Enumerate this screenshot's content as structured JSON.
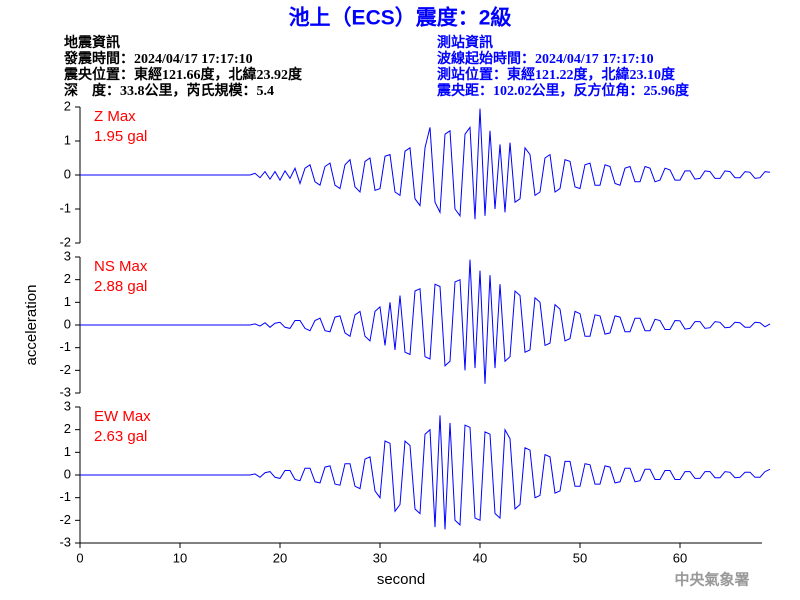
{
  "header": {
    "title": "池上（ECS）震度：2級",
    "left_lines": [
      "地震資訊",
      "發震時間：2024/04/17 17:17:10",
      "震央位置：東經121.66度，北緯23.92度",
      "深　度：33.8公里，芮氏規模：5.4"
    ],
    "right_lines": [
      "測站資訊",
      "波線起始時間：2024/04/17 17:17:10",
      "測站位置：東經121.22度，北緯23.10度",
      "震央距：102.02公里，反方位角：25.96度"
    ],
    "footer": "中央氣象署"
  },
  "chart_data": [
    {
      "type": "line",
      "annotation": "Z Max",
      "annotation_value": "1.95 gal",
      "color": "#0000ff",
      "annotation_color": "#ff0000",
      "xlim": [
        0,
        68.2
      ],
      "ylim": [
        -2,
        2
      ],
      "yticks": [
        -2,
        -1,
        0,
        1,
        2
      ],
      "x": [
        0,
        17,
        17.5,
        18,
        18.5,
        19,
        19.5,
        20,
        20.5,
        21,
        21.5,
        22,
        22.5,
        23,
        23.5,
        24,
        24.5,
        25,
        25.5,
        26,
        26.5,
        27,
        27.5,
        28,
        28.5,
        29,
        29.5,
        30,
        30.5,
        31,
        31.5,
        32,
        32.5,
        33,
        33.5,
        34,
        34.5,
        35,
        35.5,
        36,
        36.5,
        37,
        37.5,
        38,
        38.5,
        39,
        39.5,
        40,
        40.5,
        41,
        41.5,
        42,
        42.5,
        43,
        43.5,
        44,
        44.5,
        45,
        45.5,
        46,
        46.5,
        47,
        47.5,
        48,
        48.5,
        49,
        49.5,
        50,
        50.5,
        51,
        51.5,
        52,
        52.5,
        53,
        53.5,
        54,
        54.5,
        55,
        55.5,
        56,
        56.5,
        57,
        57.5,
        58,
        58.5,
        59,
        59.5,
        60,
        60.5,
        61,
        61.5,
        62,
        62.5,
        63,
        63.5,
        64,
        64.5,
        65,
        65.5,
        66,
        66.5,
        67,
        67.5,
        68,
        68.5,
        69
      ],
      "values": [
        0,
        0,
        0.05,
        -0.08,
        0.1,
        -0.12,
        0.1,
        -0.15,
        0.12,
        -0.1,
        0.2,
        -0.25,
        0.2,
        0.3,
        -0.2,
        -0.3,
        0.25,
        0.35,
        -0.3,
        -0.4,
        0.3,
        0.45,
        -0.35,
        -0.5,
        0.4,
        0.5,
        -0.45,
        -0.4,
        0.55,
        0.6,
        -0.5,
        -0.6,
        0.7,
        0.8,
        -0.7,
        -0.9,
        0.8,
        1.4,
        -0.8,
        -1.1,
        1.2,
        1.3,
        -1.0,
        -1.2,
        1.2,
        1.4,
        -1.3,
        1.95,
        -1.2,
        1.3,
        -1.0,
        0.9,
        -1.1,
        0.95,
        -0.8,
        -0.7,
        0.8,
        0.6,
        -0.6,
        -0.5,
        0.5,
        0.6,
        -0.5,
        -0.4,
        0.45,
        0.4,
        -0.35,
        -0.4,
        0.3,
        0.35,
        -0.3,
        -0.3,
        0.3,
        0.25,
        -0.25,
        -0.3,
        0.2,
        0.25,
        -0.2,
        -0.2,
        0.25,
        0.2,
        -0.2,
        -0.15,
        0.2,
        0.15,
        -0.15,
        -0.15,
        0.12,
        0.12,
        -0.12,
        -0.1,
        0.12,
        0.1,
        -0.1,
        -0.1,
        0.12,
        0.1,
        -0.08,
        -0.08,
        0.1,
        0.08,
        -0.1,
        -0.08,
        0.1,
        0.08
      ]
    },
    {
      "type": "line",
      "annotation": "NS Max",
      "annotation_value": "2.88 gal",
      "color": "#0000ff",
      "annotation_color": "#ff0000",
      "ylabel": "acceleration",
      "xlim": [
        0,
        68.2
      ],
      "ylim": [
        -3,
        3
      ],
      "yticks": [
        -3,
        -2,
        -1,
        0,
        1,
        2,
        3
      ],
      "x": [
        0,
        17,
        17.5,
        18,
        18.5,
        19,
        19.5,
        20,
        20.5,
        21,
        21.5,
        22,
        22.5,
        23,
        23.5,
        24,
        24.5,
        25,
        25.5,
        26,
        26.5,
        27,
        27.5,
        28,
        28.5,
        29,
        29.5,
        30,
        30.5,
        31,
        31.5,
        32,
        32.5,
        33,
        33.5,
        34,
        34.5,
        35,
        35.5,
        36,
        36.5,
        37,
        37.5,
        38,
        38.5,
        39,
        39.5,
        40,
        40.5,
        41,
        41.5,
        42,
        42.5,
        43,
        43.5,
        44,
        44.5,
        45,
        45.5,
        46,
        46.5,
        47,
        47.5,
        48,
        48.5,
        49,
        49.5,
        50,
        50.5,
        51,
        51.5,
        52,
        52.5,
        53,
        53.5,
        54,
        54.5,
        55,
        55.5,
        56,
        56.5,
        57,
        57.5,
        58,
        58.5,
        59,
        59.5,
        60,
        60.5,
        61,
        61.5,
        62,
        62.5,
        63,
        63.5,
        64,
        64.5,
        65,
        65.5,
        66,
        66.5,
        67,
        67.5,
        68,
        68.5,
        69
      ],
      "values": [
        0,
        0,
        0.05,
        -0.05,
        0.1,
        -0.1,
        0.08,
        0.12,
        -0.1,
        -0.15,
        0.2,
        0.2,
        -0.15,
        -0.25,
        0.2,
        0.3,
        -0.25,
        -0.3,
        0.35,
        0.4,
        -0.35,
        -0.5,
        0.45,
        0.6,
        -0.5,
        -0.7,
        0.6,
        0.8,
        -0.9,
        1.0,
        -1.1,
        1.3,
        -1.2,
        -1.3,
        1.5,
        1.6,
        -1.4,
        -1.5,
        1.8,
        1.7,
        -1.8,
        -1.6,
        1.9,
        2.0,
        -2.0,
        2.88,
        -1.9,
        2.4,
        -2.6,
        2.2,
        -1.9,
        1.8,
        -1.6,
        -1.4,
        1.5,
        1.3,
        -1.2,
        -1.1,
        1.2,
        1.0,
        -0.9,
        -0.8,
        0.9,
        0.7,
        -0.7,
        -0.6,
        0.6,
        0.5,
        -0.5,
        -0.5,
        0.45,
        0.4,
        -0.4,
        -0.35,
        0.4,
        0.35,
        -0.3,
        -0.3,
        0.3,
        0.3,
        -0.25,
        -0.25,
        0.25,
        0.2,
        -0.2,
        -0.2,
        0.2,
        0.18,
        -0.18,
        -0.15,
        0.15,
        0.15,
        -0.15,
        -0.12,
        0.15,
        0.12,
        -0.12,
        -0.1,
        0.12,
        0.1,
        -0.1,
        -0.1,
        0.12,
        0.1,
        -0.08,
        0.05
      ]
    },
    {
      "type": "line",
      "annotation": "EW Max",
      "annotation_value": "2.63 gal",
      "color": "#0000ff",
      "annotation_color": "#ff0000",
      "xlabel": "second",
      "xlim": [
        0,
        68.2
      ],
      "xticks": [
        0,
        10,
        20,
        30,
        40,
        50,
        60
      ],
      "ylim": [
        -3,
        3
      ],
      "yticks": [
        -3,
        -2,
        -1,
        0,
        1,
        2,
        3
      ],
      "x": [
        0,
        17,
        17.5,
        18,
        18.5,
        19,
        19.5,
        20,
        20.5,
        21,
        21.5,
        22,
        22.5,
        23,
        23.5,
        24,
        24.5,
        25,
        25.5,
        26,
        26.5,
        27,
        27.5,
        28,
        28.5,
        29,
        29.5,
        30,
        30.5,
        31,
        31.5,
        32,
        32.5,
        33,
        33.5,
        34,
        34.5,
        35,
        35.5,
        36,
        36.5,
        37,
        37.5,
        38,
        38.5,
        39,
        39.5,
        40,
        40.5,
        41,
        41.5,
        42,
        42.5,
        43,
        43.5,
        44,
        44.5,
        45,
        45.5,
        46,
        46.5,
        47,
        47.5,
        48,
        48.5,
        49,
        49.5,
        50,
        50.5,
        51,
        51.5,
        52,
        52.5,
        53,
        53.5,
        54,
        54.5,
        55,
        55.5,
        56,
        56.5,
        57,
        57.5,
        58,
        58.5,
        59,
        59.5,
        60,
        60.5,
        61,
        61.5,
        62,
        62.5,
        63,
        63.5,
        64,
        64.5,
        65,
        65.5,
        66,
        66.5,
        67,
        67.5,
        68,
        68.5,
        69
      ],
      "values": [
        0,
        0,
        0.05,
        -0.1,
        0.1,
        0.15,
        -0.1,
        -0.15,
        0.2,
        0.2,
        -0.2,
        -0.25,
        0.3,
        0.3,
        -0.3,
        -0.35,
        0.35,
        0.4,
        -0.4,
        -0.45,
        0.5,
        0.5,
        -0.5,
        -0.6,
        0.7,
        0.8,
        -0.7,
        -1.0,
        1.5,
        1.4,
        -1.6,
        -1.3,
        1.5,
        1.3,
        -1.5,
        -1.7,
        1.8,
        2.0,
        -2.3,
        2.63,
        -2.4,
        2.3,
        -2.0,
        -2.2,
        2.2,
        2.1,
        -1.9,
        -2.0,
        1.9,
        1.8,
        -1.7,
        -1.9,
        2.0,
        1.6,
        -1.5,
        -1.3,
        1.2,
        1.1,
        -1.0,
        -0.9,
        0.9,
        0.8,
        -0.8,
        -0.7,
        0.6,
        0.6,
        -0.5,
        -0.5,
        0.5,
        0.45,
        -0.4,
        -0.4,
        0.4,
        0.35,
        -0.35,
        -0.3,
        0.3,
        0.3,
        -0.3,
        -0.25,
        0.25,
        0.25,
        -0.2,
        -0.2,
        0.2,
        0.2,
        -0.2,
        -0.2,
        0.15,
        0.15,
        -0.15,
        -0.15,
        0.15,
        0.15,
        -0.12,
        -0.12,
        0.15,
        0.12,
        -0.12,
        -0.1,
        0.12,
        0.12,
        -0.1,
        -0.1,
        0.15,
        0.25
      ]
    }
  ]
}
